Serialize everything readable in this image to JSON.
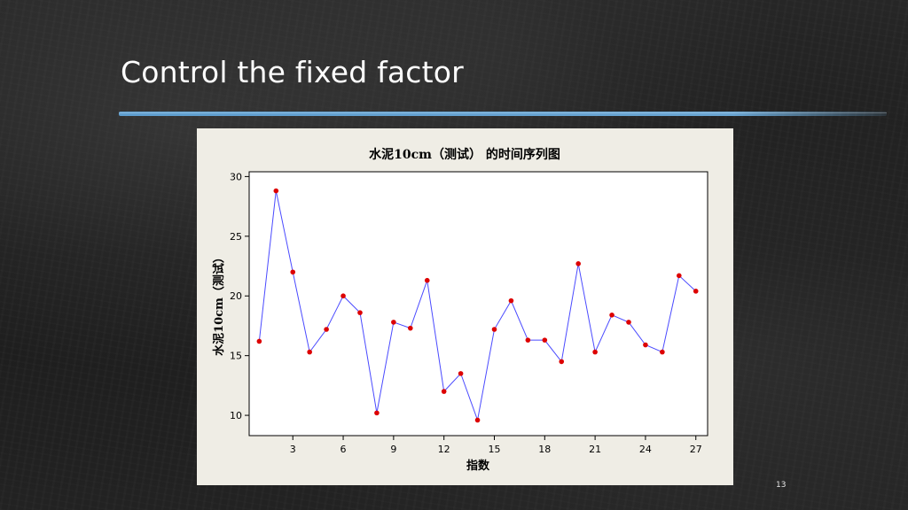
{
  "slide": {
    "title": "Control the fixed factor",
    "page_number": "13",
    "accent_color": "#6aa6d3"
  },
  "chart_data": {
    "type": "line",
    "title": "水泥10cm（测试） 的时间序列图",
    "xlabel": "指数",
    "ylabel": "水泥10cm（测试）",
    "x": [
      1,
      2,
      3,
      4,
      5,
      6,
      7,
      8,
      9,
      10,
      11,
      12,
      13,
      14,
      15,
      16,
      17,
      18,
      19,
      20,
      21,
      22,
      23,
      24,
      25,
      26,
      27
    ],
    "series": [
      {
        "values": [
          16.2,
          28.8,
          22.0,
          15.3,
          17.2,
          20.0,
          18.6,
          10.2,
          17.8,
          17.3,
          21.3,
          12.0,
          13.5,
          9.6,
          17.2,
          19.6,
          16.3,
          16.3,
          14.5,
          22.7,
          15.3,
          18.4,
          17.8,
          15.9,
          15.3,
          21.7,
          20.4
        ],
        "line_color": "#4a4aff",
        "marker_color": "#dd0000"
      }
    ],
    "xticks": [
      3,
      6,
      9,
      12,
      15,
      18,
      21,
      24,
      27
    ],
    "yticks": [
      10,
      15,
      20,
      25,
      30
    ],
    "xlim": [
      0.4,
      27.7
    ],
    "ylim": [
      8.3,
      30.4
    ],
    "grid": false,
    "legend": "none"
  }
}
